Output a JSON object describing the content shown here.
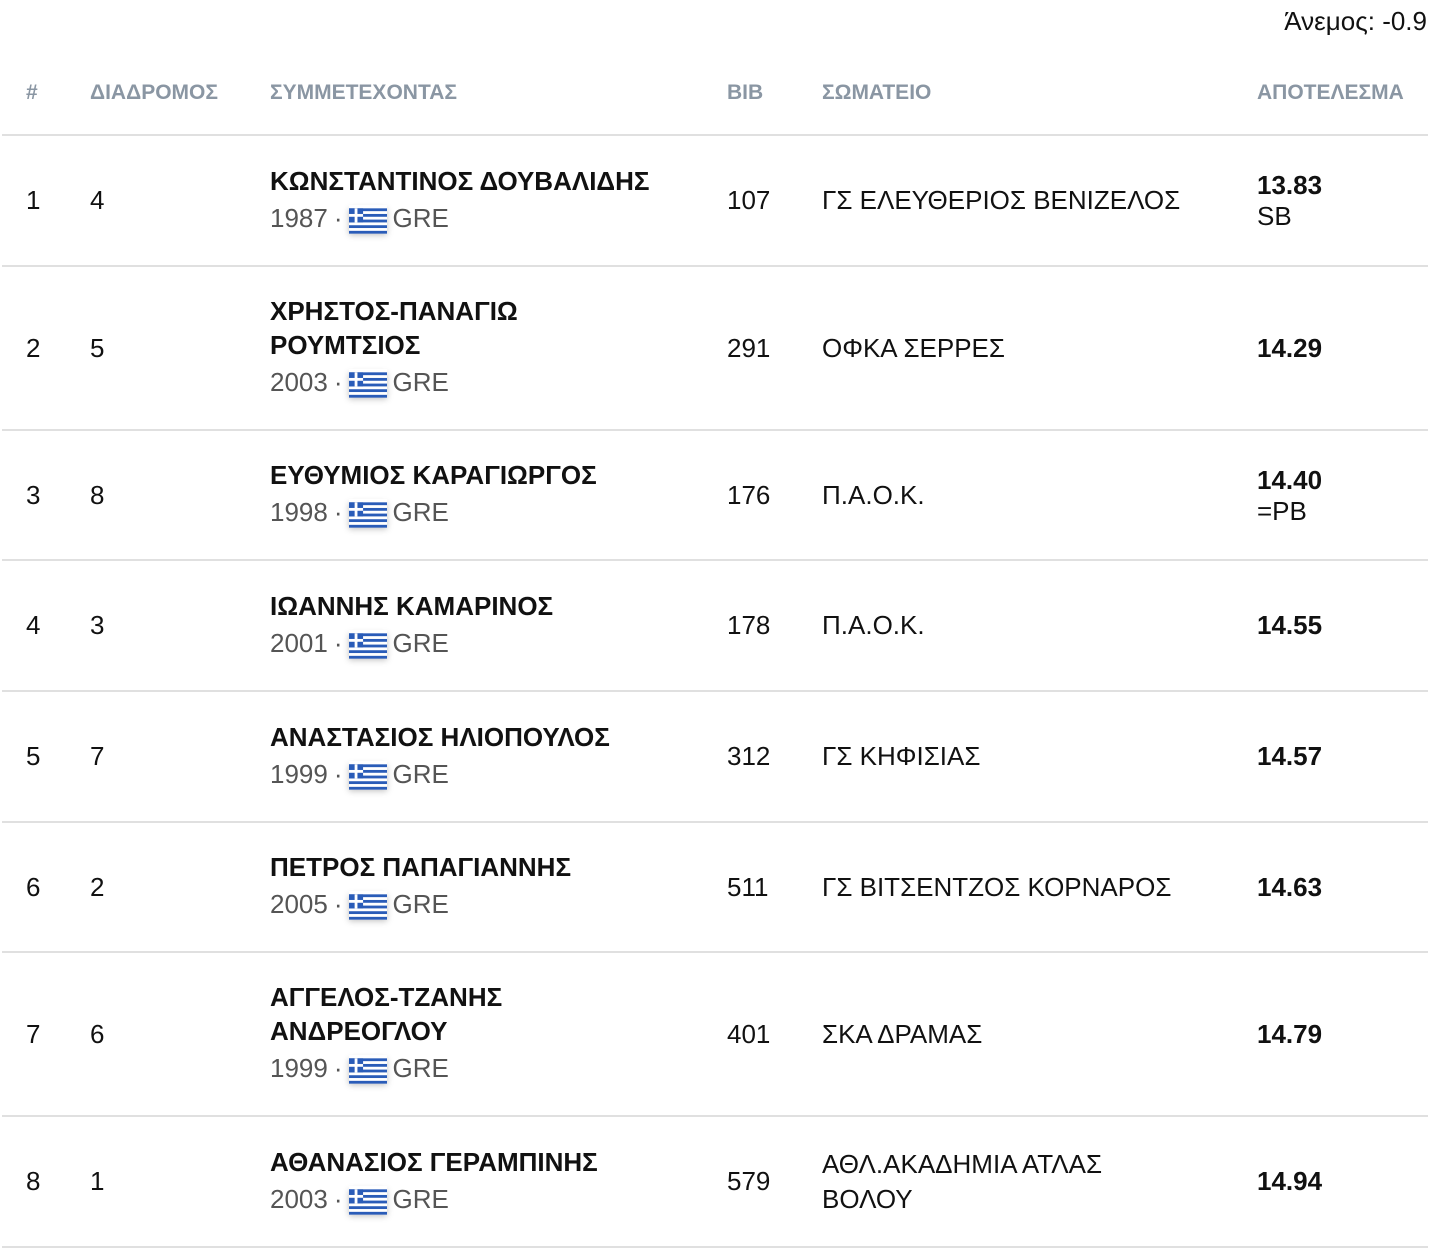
{
  "wind": "Άνεμος: -0.9",
  "headers": [
    "#",
    "ΔΙΑΔΡΟΜΟΣ",
    "ΣΥΜΜΕΤΕΧΟΝΤΑΣ",
    "BIB",
    "ΣΩΜΑΤΕΙΟ",
    "ΑΠΟΤΕΛΕΣΜΑ"
  ],
  "flag_colors": {
    "blue": "#2a5cb8",
    "white": "#ffffff"
  },
  "rows": [
    {
      "pos": "1",
      "lane": "4",
      "name": "ΚΩΝΣΤΑΝΤΙΝΟΣ ΔΟΥΒΑΛΙΔΗΣ",
      "year": "1987",
      "sep": "·",
      "country": "GRE",
      "bib": "107",
      "club": "ΓΣ ΕΛΕΥΘΕΡΙΟΣ ΒΕΝΙΖΕΛΟΣ",
      "result": "13.83",
      "note": "SB",
      "h": 131
    },
    {
      "pos": "2",
      "lane": "5",
      "name": "ΧΡΗΣΤΟΣ-ΠΑΝΑΓΙΩ\nΡΟΥΜΤΣΙΟΣ",
      "year": "2003",
      "sep": "·",
      "country": "GRE",
      "bib": "291",
      "club": "ΟΦΚΑ ΣΕΡΡΕΣ",
      "result": "14.29",
      "note": "",
      "h": 164
    },
    {
      "pos": "3",
      "lane": "8",
      "name": "ΕΥΘΥΜΙΟΣ ΚΑΡΑΓΙΩΡΓΟΣ",
      "year": "1998",
      "sep": "·",
      "country": "GRE",
      "bib": "176",
      "club": "Π.Α.Ο.Κ.",
      "result": "14.40",
      "note": "=PB",
      "h": 130
    },
    {
      "pos": "4",
      "lane": "3",
      "name": "ΙΩΑΝΝΗΣ ΚΑΜΑΡΙΝΟΣ",
      "year": "2001",
      "sep": "·",
      "country": "GRE",
      "bib": "178",
      "club": "Π.Α.Ο.Κ.",
      "result": "14.55",
      "note": "",
      "h": 131
    },
    {
      "pos": "5",
      "lane": "7",
      "name": "ΑΝΑΣΤΑΣΙΟΣ ΗΛΙΟΠΟΥΛΟΣ",
      "year": "1999",
      "sep": "·",
      "country": "GRE",
      "bib": "312",
      "club": "ΓΣ ΚΗΦΙΣΙΑΣ",
      "result": "14.57",
      "note": "",
      "h": 131
    },
    {
      "pos": "6",
      "lane": "2",
      "name": "ΠΕΤΡΟΣ ΠΑΠΑΓΙΑΝΝΗΣ",
      "year": "2005",
      "sep": "·",
      "country": "GRE",
      "bib": "511",
      "club": "ΓΣ ΒΙΤΣΕΝΤΖΟΣ ΚΟΡΝΑΡΟΣ",
      "result": "14.63",
      "note": "",
      "h": 130
    },
    {
      "pos": "7",
      "lane": "6",
      "name": "ΑΓΓΕΛΟΣ-ΤΖΑΝΗΣ\nΑΝΔΡΕΟΓΛΟΥ",
      "year": "1999",
      "sep": "·",
      "country": "GRE",
      "bib": "401",
      "club": "ΣΚΑ ΔΡΑΜΑΣ",
      "result": "14.79",
      "note": "",
      "h": 164
    },
    {
      "pos": "8",
      "lane": "1",
      "name": "ΑΘΑΝΑΣΙΟΣ ΓΕΡΑΜΠΙΝΗΣ",
      "year": "2003",
      "sep": "·",
      "country": "GRE",
      "bib": "579",
      "club": "ΑΘΛ.ΑΚΑΔΗΜΙΑ ΑΤΛΑΣ\nΒΟΛΟΥ",
      "result": "14.94",
      "note": "",
      "h": 131
    }
  ]
}
